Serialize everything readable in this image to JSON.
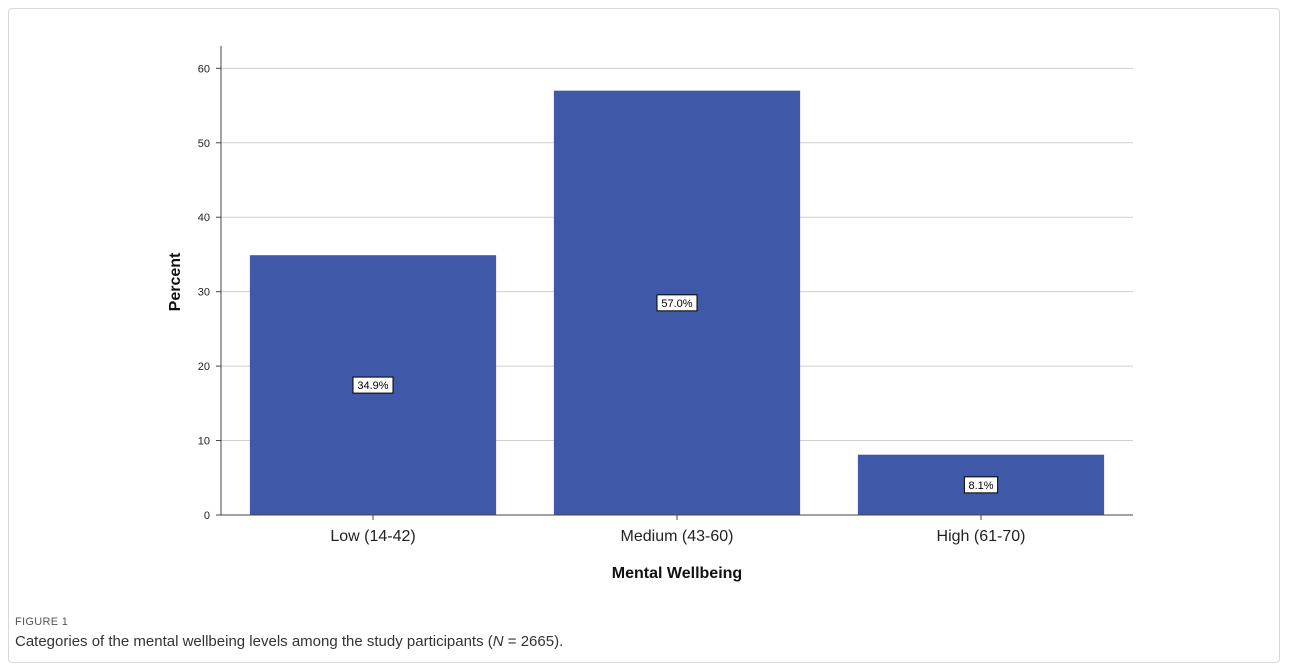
{
  "chart_data": {
    "type": "bar",
    "categories": [
      "Low (14-42)",
      "Medium (43-60)",
      "High (61-70)"
    ],
    "values": [
      34.9,
      57.0,
      8.1
    ],
    "data_labels": [
      "34.9%",
      "57.0%",
      "8.1%"
    ],
    "title": "",
    "xlabel": "Mental Wellbeing",
    "ylabel": "Percent",
    "ylim": [
      0,
      63
    ],
    "yticks": [
      0,
      10,
      20,
      30,
      40,
      50,
      60
    ],
    "grid": true,
    "legend": "none",
    "bar_color": "#3f59a8",
    "grid_color": "#cfcfcf"
  },
  "figure": {
    "label": "FIGURE 1",
    "caption_prefix": "Categories of the mental wellbeing levels among the study participants (",
    "caption_var": "N",
    "caption_suffix": " = 2665)."
  }
}
